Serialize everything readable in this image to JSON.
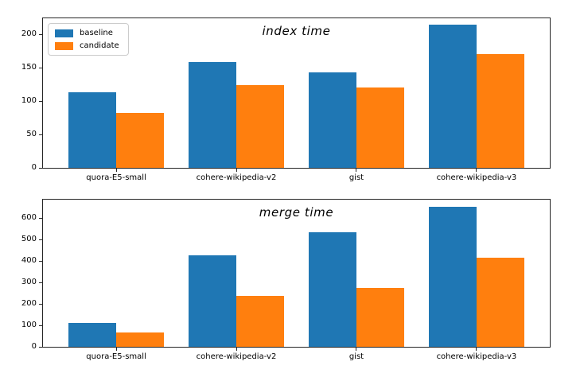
{
  "figure": {
    "background": "#ffffff",
    "axis_color": "#262626",
    "text_color": "#000000"
  },
  "legend": {
    "entries": [
      {
        "label": "baseline",
        "color": "#1f77b4"
      },
      {
        "label": "candidate",
        "color": "#ff7f0e"
      }
    ]
  },
  "chart_data": [
    {
      "type": "bar",
      "title": "index time",
      "categories": [
        "quora-E5-small",
        "cohere-wikipedia-v2",
        "gist",
        "cohere-wikipedia-v3"
      ],
      "series": [
        {
          "name": "baseline",
          "color": "#1f77b4",
          "values": [
            113,
            159,
            143,
            214
          ]
        },
        {
          "name": "candidate",
          "color": "#ff7f0e",
          "values": [
            82,
            124,
            120,
            170
          ]
        }
      ],
      "bar_width": 0.4,
      "xlim": [
        -0.61,
        3.61
      ],
      "ylim": [
        0,
        224
      ],
      "yticks": [
        0,
        50,
        100,
        150,
        200
      ],
      "grid": false,
      "legend": true,
      "legend_position": "upper-left"
    },
    {
      "type": "bar",
      "title": "merge time",
      "categories": [
        "quora-E5-small",
        "cohere-wikipedia-v2",
        "gist",
        "cohere-wikipedia-v3"
      ],
      "series": [
        {
          "name": "baseline",
          "color": "#1f77b4",
          "values": [
            110,
            426,
            536,
            654
          ]
        },
        {
          "name": "candidate",
          "color": "#ff7f0e",
          "values": [
            67,
            239,
            276,
            415
          ]
        }
      ],
      "bar_width": 0.4,
      "xlim": [
        -0.61,
        3.61
      ],
      "ylim": [
        0,
        687
      ],
      "yticks": [
        0,
        100,
        200,
        300,
        400,
        500,
        600
      ],
      "grid": false,
      "legend": false
    }
  ]
}
